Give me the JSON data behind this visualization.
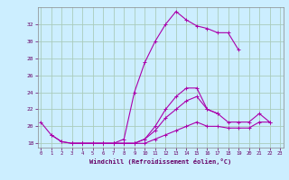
{
  "background_color": "#cceeff",
  "grid_color": "#aaccbb",
  "line_color": "#aa00aa",
  "xlabel": "Windchill (Refroidissement éolien,°C)",
  "x": [
    0,
    1,
    2,
    3,
    4,
    5,
    6,
    7,
    8,
    9,
    10,
    11,
    12,
    13,
    14,
    15,
    16,
    17,
    18,
    19,
    20,
    21,
    22,
    23
  ],
  "line1": [
    20.5,
    19.0,
    18.2,
    18.0,
    18.0,
    18.0,
    18.0,
    18.0,
    18.5,
    24.0,
    27.5,
    30.0,
    32.0,
    33.5,
    32.5,
    31.8,
    31.5,
    31.0,
    31.0,
    29.0,
    null,
    null,
    null,
    null
  ],
  "line2": [
    null,
    null,
    null,
    null,
    null,
    null,
    null,
    null,
    null,
    null,
    null,
    null,
    null,
    null,
    null,
    null,
    null,
    null,
    null,
    null,
    null,
    null,
    null,
    null
  ],
  "line3": [
    null,
    19.0,
    18.2,
    18.0,
    18.0,
    18.0,
    18.0,
    18.0,
    18.0,
    18.0,
    18.5,
    20.0,
    22.0,
    23.5,
    24.5,
    24.5,
    22.0,
    21.5,
    null,
    null,
    null,
    null,
    null,
    null
  ],
  "line4": [
    null,
    null,
    null,
    18.0,
    18.0,
    18.0,
    18.0,
    18.0,
    18.0,
    18.0,
    18.5,
    19.5,
    21.0,
    22.0,
    23.0,
    23.5,
    22.0,
    21.5,
    20.5,
    20.5,
    20.5,
    21.5,
    20.5,
    null
  ],
  "line5": [
    null,
    null,
    null,
    18.0,
    18.0,
    18.0,
    18.0,
    18.0,
    18.0,
    18.0,
    18.0,
    18.5,
    19.0,
    19.5,
    20.0,
    20.5,
    20.0,
    20.0,
    19.8,
    19.8,
    19.8,
    20.5,
    20.5,
    null
  ],
  "ylim": [
    17.5,
    34.0
  ],
  "xlim": [
    -0.3,
    23.3
  ],
  "xticks": [
    0,
    1,
    2,
    3,
    4,
    5,
    6,
    7,
    8,
    9,
    10,
    11,
    12,
    13,
    14,
    15,
    16,
    17,
    18,
    19,
    20,
    21,
    22,
    23
  ],
  "yticks": [
    18,
    20,
    22,
    24,
    26,
    28,
    30,
    32
  ],
  "markersize": 3,
  "linewidth": 0.8
}
